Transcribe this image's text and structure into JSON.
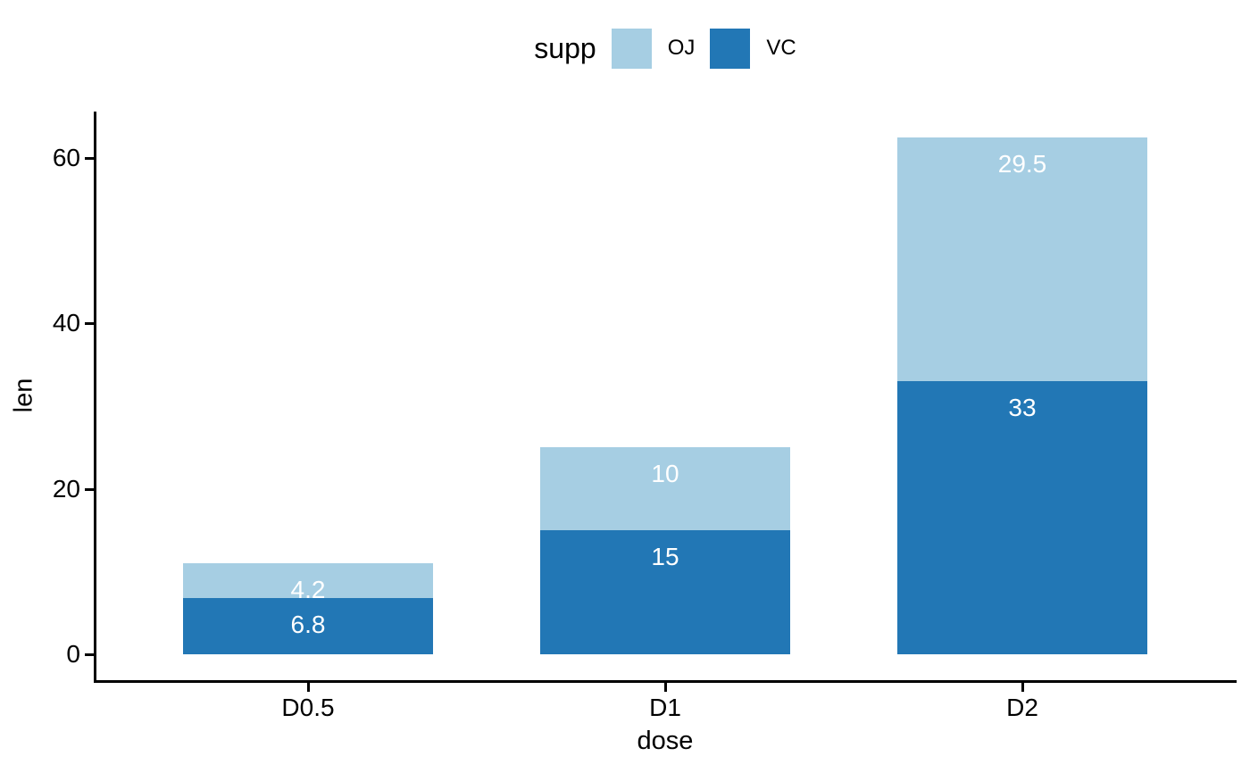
{
  "chart_data": {
    "type": "bar",
    "stacked": true,
    "title": "",
    "xlabel": "dose",
    "ylabel": "len",
    "categories": [
      "D0.5",
      "D1",
      "D2"
    ],
    "series": [
      {
        "name": "VC",
        "color": "#2277b5",
        "stack_position": "bottom",
        "values": [
          6.8,
          15,
          33
        ],
        "value_labels": [
          "6.8",
          "15",
          "33"
        ]
      },
      {
        "name": "OJ",
        "color": "#a6cee3",
        "stack_position": "top",
        "values": [
          4.2,
          10,
          29.5
        ],
        "value_labels": [
          "4.2",
          "10",
          "29.5"
        ]
      }
    ],
    "bar_totals": [
      11,
      25,
      62.5
    ],
    "yticks": [
      0,
      20,
      40,
      60
    ],
    "ytick_labels": [
      "0",
      "20",
      "40",
      "60"
    ],
    "ylim": [
      0,
      62.5
    ],
    "grid": "off",
    "value_label_color": "#ffffff",
    "axis_color": "#000000",
    "text_color": "#000000",
    "legend": {
      "position": "top-center",
      "title": "supp",
      "entries": [
        {
          "label": "OJ",
          "color": "#a6cee3"
        },
        {
          "label": "VC",
          "color": "#2277b5"
        }
      ]
    }
  }
}
